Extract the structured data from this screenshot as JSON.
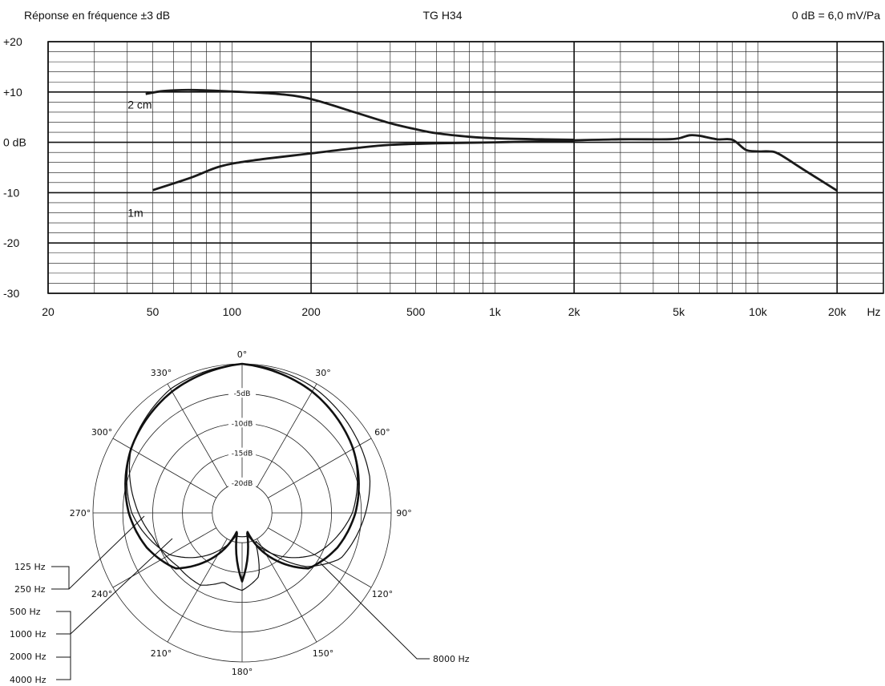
{
  "chart_data": [
    {
      "type": "line",
      "title": "TG H34",
      "subtitle_left": "Réponse en fréquence ±3 dB",
      "subtitle_right": "0 dB = 6,0 mV/Pa",
      "xlabel": "Hz",
      "ylabel": "",
      "x_scale": "log",
      "xlim": [
        20,
        30000
      ],
      "ylim": [
        -30,
        20
      ],
      "x_ticks": [
        {
          "value": 20,
          "label": "20"
        },
        {
          "value": 50,
          "label": "50"
        },
        {
          "value": 100,
          "label": "100"
        },
        {
          "value": 200,
          "label": "200"
        },
        {
          "value": 500,
          "label": "500"
        },
        {
          "value": 1000,
          "label": "1k"
        },
        {
          "value": 2000,
          "label": "2k"
        },
        {
          "value": 5000,
          "label": "5k"
        },
        {
          "value": 10000,
          "label": "10k"
        },
        {
          "value": 20000,
          "label": "20k"
        }
      ],
      "y_ticks": [
        {
          "value": 20,
          "label": "+20"
        },
        {
          "value": 10,
          "label": "+10"
        },
        {
          "value": 0,
          "label": "0 dB"
        },
        {
          "value": -10,
          "label": "-10"
        },
        {
          "value": -20,
          "label": "-20"
        },
        {
          "value": -30,
          "label": "-30"
        }
      ],
      "grid": true,
      "series": [
        {
          "name": "2 cm",
          "label_at": [
            57,
            7.5
          ],
          "points": [
            [
              47,
              9.6
            ],
            [
              55,
              10.2
            ],
            [
              70,
              10.4
            ],
            [
              100,
              10.1
            ],
            [
              150,
              9.6
            ],
            [
              200,
              8.6
            ],
            [
              300,
              5.8
            ],
            [
              400,
              3.8
            ],
            [
              500,
              2.6
            ],
            [
              600,
              1.8
            ],
            [
              800,
              1.1
            ],
            [
              1000,
              0.8
            ],
            [
              1500,
              0.6
            ],
            [
              2000,
              0.5
            ]
          ]
        },
        {
          "name": "1m",
          "label_at": [
            57,
            -14
          ],
          "points": [
            [
              50,
              -9.5
            ],
            [
              70,
              -7
            ],
            [
              90,
              -4.8
            ],
            [
              120,
              -3.6
            ],
            [
              200,
              -2.2
            ],
            [
              300,
              -1.1
            ],
            [
              400,
              -0.5
            ],
            [
              600,
              -0.2
            ],
            [
              1000,
              0
            ],
            [
              1500,
              0.2
            ],
            [
              2000,
              0.3
            ]
          ]
        },
        {
          "name": "",
          "points": [
            [
              2000,
              0.4
            ],
            [
              3000,
              0.6
            ],
            [
              4500,
              0.6
            ],
            [
              5000,
              0.8
            ],
            [
              5500,
              1.4
            ],
            [
              6000,
              1.3
            ],
            [
              7000,
              0.6
            ],
            [
              8000,
              0.5
            ],
            [
              9000,
              -1.5
            ],
            [
              10000,
              -1.8
            ],
            [
              11000,
              -1.8
            ],
            [
              12000,
              -2.3
            ],
            [
              15000,
              -5.5
            ],
            [
              20000,
              -9.6
            ]
          ]
        }
      ]
    },
    {
      "type": "polar",
      "angle_labels": [
        "0°",
        "30°",
        "60°",
        "90°",
        "120°",
        "150°",
        "180°",
        "210°",
        "240°",
        "270°",
        "300°",
        "330°"
      ],
      "ring_labels": [
        "-5dB",
        "-10dB",
        "-15dB",
        "-20dB"
      ],
      "legend": {
        "group_low": [
          "125 Hz",
          "250 Hz"
        ],
        "group_mid": [
          "500 Hz",
          "1000 Hz",
          "2000 Hz",
          "4000 Hz"
        ],
        "group_high": [
          "8000 Hz"
        ]
      },
      "series": [
        {
          "name": "125–250 Hz",
          "pattern_deg_db": [
            [
              0,
              0
            ],
            [
              30,
              -1.5
            ],
            [
              60,
              -3.5
            ],
            [
              90,
              -6.5
            ],
            [
              120,
              -11
            ],
            [
              150,
              -18
            ],
            [
              165,
              -21
            ],
            [
              180,
              -21
            ],
            [
              195,
              -21
            ],
            [
              210,
              -18
            ],
            [
              240,
              -11
            ],
            [
              270,
              -6.5
            ],
            [
              300,
              -3.5
            ],
            [
              330,
              -1.5
            ]
          ]
        },
        {
          "name": "500–4000 Hz",
          "pattern_deg_db": [
            [
              0,
              0
            ],
            [
              30,
              -1.5
            ],
            [
              60,
              -3.5
            ],
            [
              90,
              -6
            ],
            [
              110,
              -8
            ],
            [
              130,
              -10.5
            ],
            [
              150,
              -17
            ],
            [
              165,
              -22
            ],
            [
              180,
              -13.5
            ],
            [
              195,
              -22
            ],
            [
              210,
              -17
            ],
            [
              230,
              -10.5
            ],
            [
              250,
              -8
            ],
            [
              270,
              -6
            ],
            [
              300,
              -3.5
            ],
            [
              330,
              -1.5
            ]
          ]
        },
        {
          "name": "8000 Hz",
          "pattern_deg_db": [
            [
              0,
              0
            ],
            [
              30,
              -0.8
            ],
            [
              55,
              -2
            ],
            [
              75,
              -2.8
            ],
            [
              95,
              -4.8
            ],
            [
              115,
              -6.8
            ],
            [
              130,
              -11
            ],
            [
              145,
              -17
            ],
            [
              155,
              -20
            ],
            [
              165,
              -14
            ],
            [
              180,
              -12
            ],
            [
              195,
              -13
            ],
            [
              210,
              -11
            ],
            [
              230,
              -11
            ],
            [
              255,
              -9.5
            ],
            [
              275,
              -7
            ],
            [
              300,
              -3.5
            ],
            [
              330,
              -1
            ]
          ]
        }
      ]
    }
  ]
}
